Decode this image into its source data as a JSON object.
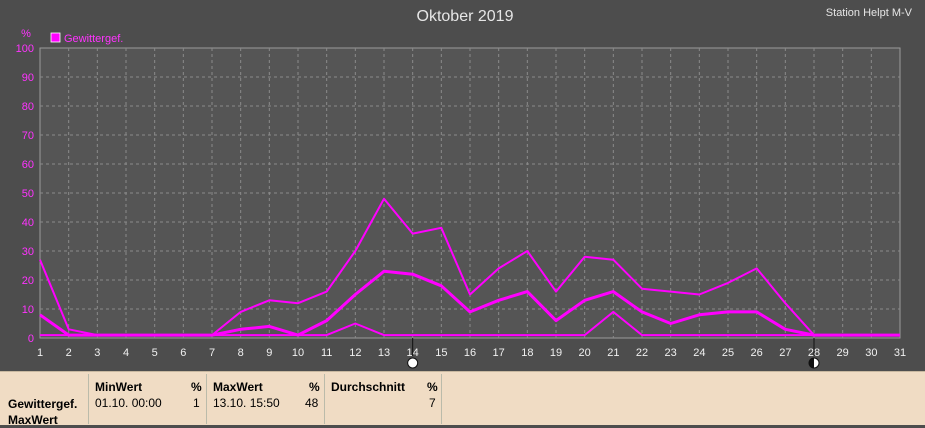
{
  "header": {
    "title": "Oktober 2019",
    "station": "Station Helpt M-V"
  },
  "chart_data": {
    "type": "line",
    "ylabel": "%",
    "ylim": [
      0,
      100
    ],
    "yticks": [
      0,
      10,
      20,
      30,
      40,
      50,
      60,
      70,
      80,
      90,
      100
    ],
    "x": [
      1,
      2,
      3,
      4,
      5,
      6,
      7,
      8,
      9,
      10,
      11,
      12,
      13,
      14,
      15,
      16,
      17,
      18,
      19,
      20,
      21,
      22,
      23,
      24,
      25,
      26,
      27,
      28,
      29,
      30,
      31
    ],
    "legend": {
      "label": "Gewittergef.",
      "position": "top-left"
    },
    "grid": true,
    "series": [
      {
        "role": "max",
        "values": [
          27,
          3,
          1,
          1,
          1,
          1,
          1,
          9,
          13,
          12,
          16,
          30,
          48,
          36,
          38,
          15,
          24,
          30,
          16,
          28,
          27,
          17,
          16,
          15,
          19,
          24,
          12,
          1,
          1,
          1,
          1
        ]
      },
      {
        "role": "avg",
        "values": [
          8,
          1,
          1,
          1,
          1,
          1,
          1,
          3,
          4,
          1,
          6,
          15,
          23,
          22,
          18,
          9,
          13,
          16,
          6,
          13,
          16,
          9,
          5,
          8,
          9,
          9,
          3,
          1,
          1,
          1,
          1
        ]
      },
      {
        "role": "min",
        "values": [
          1,
          1,
          1,
          1,
          1,
          1,
          1,
          1,
          1,
          1,
          1,
          5,
          1,
          1,
          1,
          1,
          1,
          1,
          1,
          1,
          9,
          1,
          1,
          1,
          1,
          1,
          1,
          1,
          1,
          1,
          1
        ]
      }
    ],
    "markers": [
      {
        "x": 14,
        "icon": "full-moon-icon"
      },
      {
        "x": 28,
        "icon": "new-moon-icon"
      }
    ],
    "colors": {
      "line": "#ff00ff",
      "text": "#ff33ff",
      "background": "#4d4d4d",
      "plot": "#555555",
      "grid": "#8a8a8a"
    }
  },
  "stats": {
    "row_label_line1": "Gewittergef.",
    "row_label_line2": "MaxWert",
    "min": {
      "header": "MinWert",
      "unit": "%",
      "when": "01.10.  00:00",
      "value": "1"
    },
    "max": {
      "header": "MaxWert",
      "unit": "%",
      "when": "13.10.  15:50",
      "value": "48"
    },
    "avg": {
      "header": "Durchschnitt",
      "unit": "%",
      "value": "7"
    }
  }
}
